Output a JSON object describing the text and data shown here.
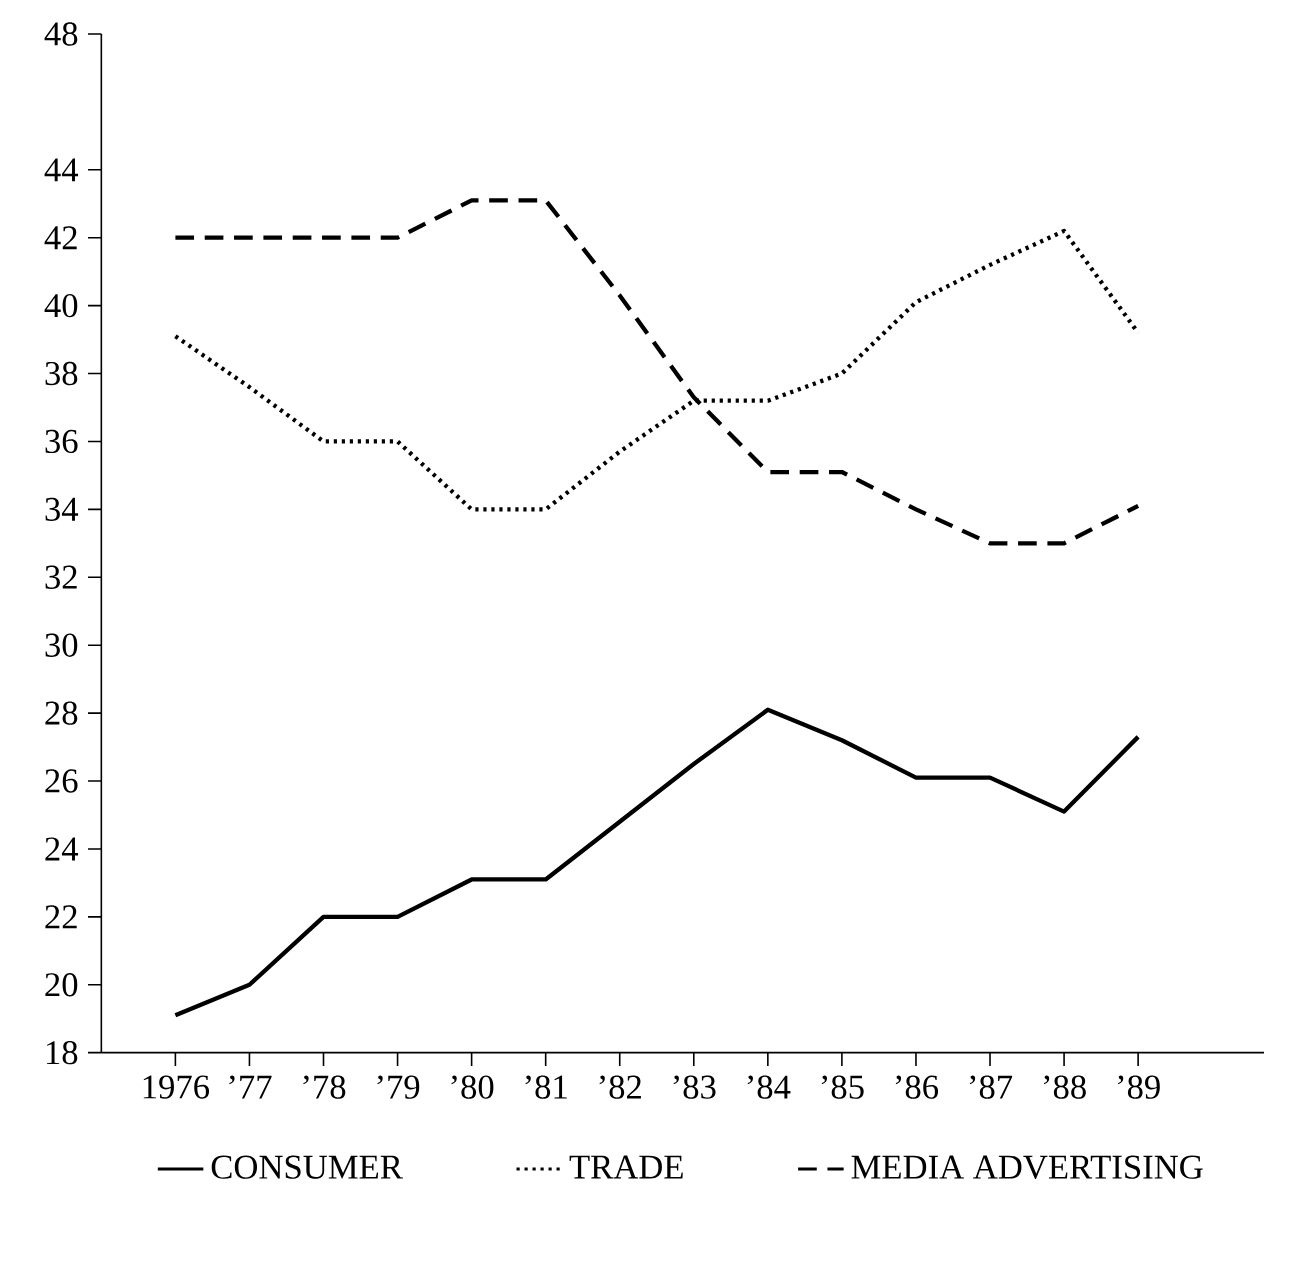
{
  "chart_data": {
    "type": "line",
    "categories": [
      "1976",
      "’77",
      "’78",
      "’79",
      "’80",
      "’81",
      "’82",
      "’83",
      "’84",
      "’85",
      "’86",
      "’87",
      "’88",
      "’89"
    ],
    "series": [
      {
        "name": "CONSUMER",
        "color": "#000000",
        "line_style": "solid",
        "values": [
          19.1,
          20,
          22,
          22,
          23.1,
          23.1,
          24.8,
          26.5,
          28.1,
          27.2,
          26.1,
          26.1,
          25.1,
          27.3
        ]
      },
      {
        "name": "TRADE",
        "color": "#000000",
        "line_style": "dotted",
        "values": [
          39.1,
          37.6,
          36,
          36,
          34,
          34,
          35.7,
          37.2,
          37.2,
          38,
          40.1,
          41.2,
          42.2,
          39.2
        ]
      },
      {
        "name": "MEDIA ADVERTISING",
        "color": "#000000",
        "line_style": "dashed",
        "values": [
          42,
          42,
          42,
          42,
          43.1,
          43.1,
          40.3,
          37.3,
          35.1,
          35.1,
          34,
          33,
          33,
          34.1
        ]
      }
    ],
    "ylim": [
      18,
      48
    ],
    "yticks": [
      18,
      20,
      22,
      24,
      26,
      28,
      30,
      32,
      34,
      36,
      38,
      40,
      42,
      44,
      48
    ],
    "grid": false,
    "legend": "bottom",
    "marker": "none"
  }
}
